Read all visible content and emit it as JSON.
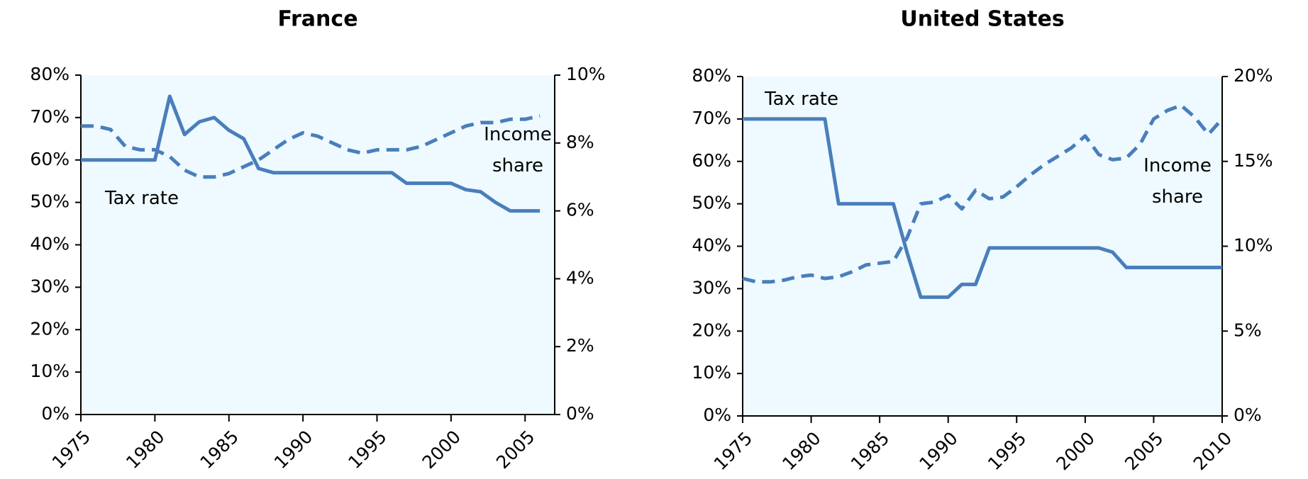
{
  "chart_data": [
    {
      "type": "line",
      "title": "France",
      "x": [
        1975,
        1976,
        1977,
        1978,
        1979,
        1980,
        1981,
        1982,
        1983,
        1984,
        1985,
        1986,
        1987,
        1988,
        1989,
        1990,
        1991,
        1992,
        1993,
        1994,
        1995,
        1996,
        1997,
        1998,
        1999,
        2000,
        2001,
        2002,
        2003,
        2004,
        2005,
        2006
      ],
      "xlim": [
        1975,
        2007
      ],
      "xticks": [
        1975,
        1980,
        1985,
        1990,
        1995,
        2000,
        2005
      ],
      "ylim": [
        0,
        80
      ],
      "yticks": [
        {
          "value": 0,
          "label": "0%"
        },
        {
          "value": 10,
          "label": "10%"
        },
        {
          "value": 20,
          "label": "20%"
        },
        {
          "value": 30,
          "label": "30%"
        },
        {
          "value": 40,
          "label": "40%"
        },
        {
          "value": 50,
          "label": "50%"
        },
        {
          "value": 60,
          "label": "60%"
        },
        {
          "value": 70,
          "label": "70%"
        },
        {
          "value": 80,
          "label": "80%"
        }
      ],
      "y2lim": [
        0,
        10
      ],
      "y2ticks": [
        {
          "value": 0,
          "label": "0%"
        },
        {
          "value": 2,
          "label": "2%"
        },
        {
          "value": 4,
          "label": "4%"
        },
        {
          "value": 6,
          "label": "6%"
        },
        {
          "value": 8,
          "label": "8%"
        },
        {
          "value": 10,
          "label": "10%"
        }
      ],
      "series": [
        {
          "name": "Tax rate",
          "color": "#4a7ebb",
          "style": "solid",
          "values": [
            60,
            60,
            60,
            60,
            60,
            60,
            75,
            66,
            69,
            70,
            67,
            65,
            58,
            57,
            57,
            57,
            57,
            57,
            57,
            57,
            57,
            57,
            54.5,
            54.5,
            54.5,
            54.5,
            53,
            52.5,
            50,
            48,
            48,
            48
          ]
        },
        {
          "name": "Income share",
          "color": "#4a7ebb",
          "style": "dashed",
          "axis": "y2",
          "values": [
            8.5,
            8.5,
            8.4,
            7.9,
            7.8,
            7.8,
            7.6,
            7.2,
            7.0,
            7.0,
            7.1,
            7.3,
            7.5,
            7.8,
            8.1,
            8.3,
            8.2,
            8.0,
            7.8,
            7.7,
            7.8,
            7.8,
            7.8,
            7.9,
            8.1,
            8.3,
            8.5,
            8.6,
            8.6,
            8.7,
            8.7,
            8.8
          ]
        }
      ]
    },
    {
      "type": "line",
      "title": "United States",
      "x": [
        1975,
        1976,
        1977,
        1978,
        1979,
        1980,
        1981,
        1982,
        1983,
        1984,
        1985,
        1986,
        1987,
        1988,
        1989,
        1990,
        1991,
        1992,
        1993,
        1994,
        1995,
        1996,
        1997,
        1998,
        1999,
        2000,
        2001,
        2002,
        2003,
        2004,
        2005,
        2006,
        2007,
        2008,
        2009,
        2010
      ],
      "xlim": [
        1975,
        2010
      ],
      "xticks": [
        1975,
        1980,
        1985,
        1990,
        1995,
        2000,
        2005,
        2010
      ],
      "ylim": [
        0,
        80
      ],
      "yticks": [
        {
          "value": 0,
          "label": "0%"
        },
        {
          "value": 10,
          "label": "10%"
        },
        {
          "value": 20,
          "label": "20%"
        },
        {
          "value": 30,
          "label": "30%"
        },
        {
          "value": 40,
          "label": "40%"
        },
        {
          "value": 50,
          "label": "50%"
        },
        {
          "value": 60,
          "label": "60%"
        },
        {
          "value": 70,
          "label": "70%"
        },
        {
          "value": 80,
          "label": "80%"
        }
      ],
      "y2lim": [
        0,
        20
      ],
      "y2ticks": [
        {
          "value": 0,
          "label": "0%"
        },
        {
          "value": 5,
          "label": "5%"
        },
        {
          "value": 10,
          "label": "10%"
        },
        {
          "value": 15,
          "label": "15%"
        },
        {
          "value": 20,
          "label": "20%"
        }
      ],
      "series": [
        {
          "name": "Tax rate",
          "color": "#4a7ebb",
          "style": "solid",
          "values": [
            70,
            70,
            70,
            70,
            70,
            70,
            70,
            50,
            50,
            50,
            50,
            50,
            38.5,
            28,
            28,
            28,
            31,
            31,
            39.6,
            39.6,
            39.6,
            39.6,
            39.6,
            39.6,
            39.6,
            39.6,
            39.6,
            38.6,
            35,
            35,
            35,
            35,
            35,
            35,
            35,
            35
          ]
        },
        {
          "name": "Income share",
          "color": "#4a7ebb",
          "style": "dashed",
          "axis": "y2",
          "values": [
            8.1,
            7.9,
            7.9,
            8.0,
            8.2,
            8.3,
            8.1,
            8.2,
            8.5,
            8.9,
            9.0,
            9.1,
            10.5,
            12.5,
            12.6,
            13.0,
            12.2,
            13.3,
            12.8,
            12.9,
            13.5,
            14.2,
            14.8,
            15.3,
            15.8,
            16.5,
            15.4,
            15.1,
            15.2,
            16.0,
            17.5,
            18.0,
            18.3,
            17.6,
            16.6,
            17.5
          ]
        }
      ]
    }
  ]
}
